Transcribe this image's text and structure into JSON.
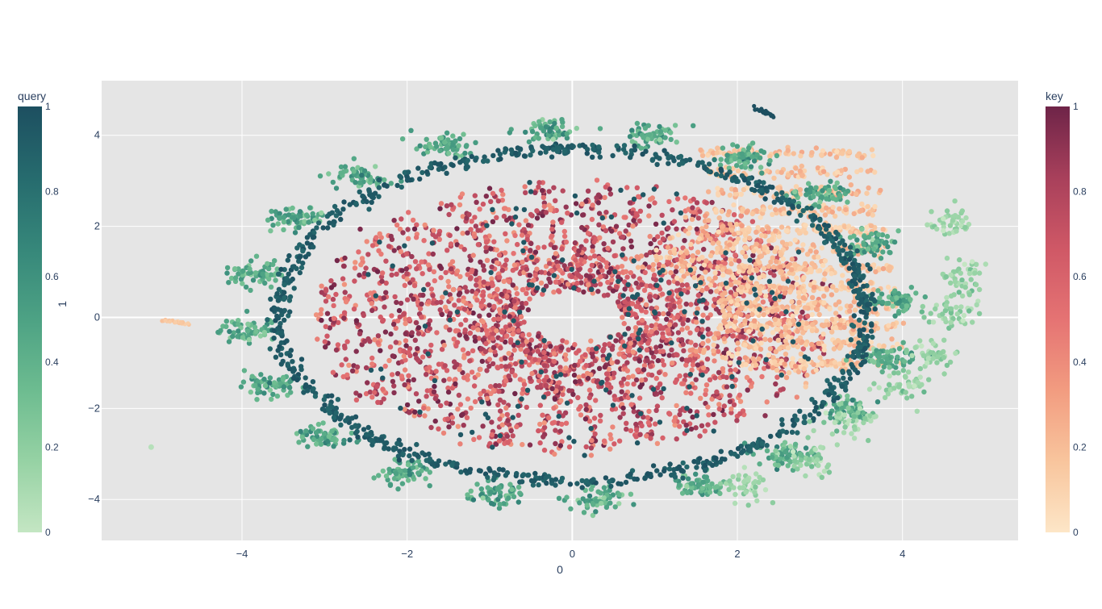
{
  "chart_data": {
    "type": "scatter",
    "xlabel": "0",
    "ylabel": "1",
    "xlim": [
      -5.7,
      5.4
    ],
    "ylim": [
      -4.9,
      5.2
    ],
    "x_ticks": [
      -4,
      -2,
      0,
      2,
      4
    ],
    "y_ticks": [
      -4,
      -2,
      0,
      2,
      4
    ],
    "grid": true,
    "background": "#e5e5e5",
    "series": [
      {
        "name": "query",
        "colorscale": [
          "#c4e6c3",
          "#96d2a4",
          "#6dbc90",
          "#4da284",
          "#36877a",
          "#266b6e",
          "#1d4f60"
        ],
        "colorbar": {
          "title": "query",
          "range": [
            0,
            1
          ],
          "ticks": [
            "0",
            "0.2",
            "0.4",
            "0.6",
            "0.8",
            "1"
          ],
          "position": "left"
        },
        "structures": [
          {
            "shape": "ring",
            "cx": 0,
            "cy": 0.05,
            "rx": 3.95,
            "ry": 4.05,
            "clusters": 20,
            "color_value": 0.45
          },
          {
            "shape": "ring",
            "cx": 0,
            "cy": 0.05,
            "rx": 3.55,
            "ry": 3.65,
            "clusters": 40,
            "color_value": 0.95
          },
          {
            "shape": "arc",
            "cx": 3.9,
            "cy": -1.2,
            "points_at": [
              [
                4.6,
                2.1
              ],
              [
                4.7,
                0.9
              ],
              [
                4.6,
                0.1
              ],
              [
                4.4,
                -0.8
              ],
              [
                4.0,
                -1.5
              ],
              [
                3.4,
                -2.3
              ],
              [
                2.9,
                -3.1
              ],
              [
                2.1,
                -3.7
              ]
            ],
            "color_value": 0.15
          },
          {
            "shape": "line",
            "from": [
              2.2,
              4.6
            ],
            "to": [
              2.45,
              4.4
            ],
            "color_value": 1.0
          },
          {
            "shape": "dot",
            "x": -5.1,
            "y": -2.85,
            "color_value": 0.05
          }
        ]
      },
      {
        "name": "key",
        "colorscale": [
          "#fde6c7",
          "#f8c59d",
          "#f29c80",
          "#e57373",
          "#cf5866",
          "#a8405b",
          "#6e2448"
        ],
        "colorbar": {
          "title": "key",
          "range": [
            0,
            1
          ],
          "ticks": [
            "0",
            "0.2",
            "0.4",
            "0.6",
            "0.8",
            "1"
          ],
          "position": "right"
        },
        "structures": [
          {
            "shape": "spokes",
            "cx": 0,
            "cy": 0,
            "r_inner": 0.6,
            "r_outer": 3.0,
            "count": 30,
            "color_range": [
              0.35,
              1.0
            ]
          },
          {
            "shape": "spokes",
            "cx": 0.2,
            "cy": 0,
            "r_inner": 1.6,
            "r_outer": 3.5,
            "angle_range": [
              -40,
              70
            ],
            "color_range": [
              0.05,
              0.35
            ]
          },
          {
            "shape": "fan",
            "cx": 3.0,
            "cy": 1.0,
            "spread_x": 1.5,
            "spread_y": 2.7,
            "color_range": [
              0.05,
              0.3
            ]
          },
          {
            "shape": "line",
            "from": [
              -5.0,
              -0.05
            ],
            "to": [
              -4.6,
              -0.15
            ],
            "color_value": 0.1
          }
        ]
      }
    ]
  }
}
